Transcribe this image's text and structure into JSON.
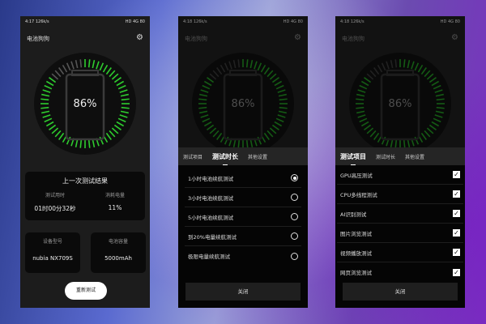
{
  "app": {
    "title": "电池狗狗",
    "battery_percent": "86%",
    "level": 0.86
  },
  "phones": [
    {
      "status_time": "4:17",
      "status_speed": "126k/s"
    },
    {
      "status_time": "4:18",
      "status_speed": "126k/s"
    },
    {
      "status_time": "4:18",
      "status_speed": "126k/s"
    }
  ],
  "status_right": "HD 4G 80",
  "results": {
    "heading": "上一次测试结果",
    "duration_label": "测试用时",
    "duration_value": "01时00分32秒",
    "consumed_label": "消耗电量",
    "consumed_value": "11%"
  },
  "device": {
    "model_label": "设备型号",
    "model_value": "nubia NX709S",
    "capacity_label": "电池容量",
    "capacity_value": "5000mAh"
  },
  "retest_label": "重新测试",
  "tabs": [
    "测试项目",
    "测试时长",
    "其他设置"
  ],
  "durations": [
    {
      "label": "1小时电池续航测试",
      "selected": true
    },
    {
      "label": "3小时电池续航测试",
      "selected": false
    },
    {
      "label": "5小时电池续航测试",
      "selected": false
    },
    {
      "label": "到20%电量续航测试",
      "selected": false
    },
    {
      "label": "极限电量续航测试",
      "selected": false
    }
  ],
  "items": [
    {
      "label": "GPU高压测试",
      "checked": true
    },
    {
      "label": "CPU多线程测试",
      "checked": true
    },
    {
      "label": "AI识别测试",
      "checked": true
    },
    {
      "label": "图片浏览测试",
      "checked": true
    },
    {
      "label": "视频播放测试",
      "checked": true
    },
    {
      "label": "网页浏览测试",
      "checked": true
    }
  ],
  "close_label": "关闭",
  "colors": {
    "accent": "#2ecc2e",
    "inactive_tick": "#555555"
  }
}
